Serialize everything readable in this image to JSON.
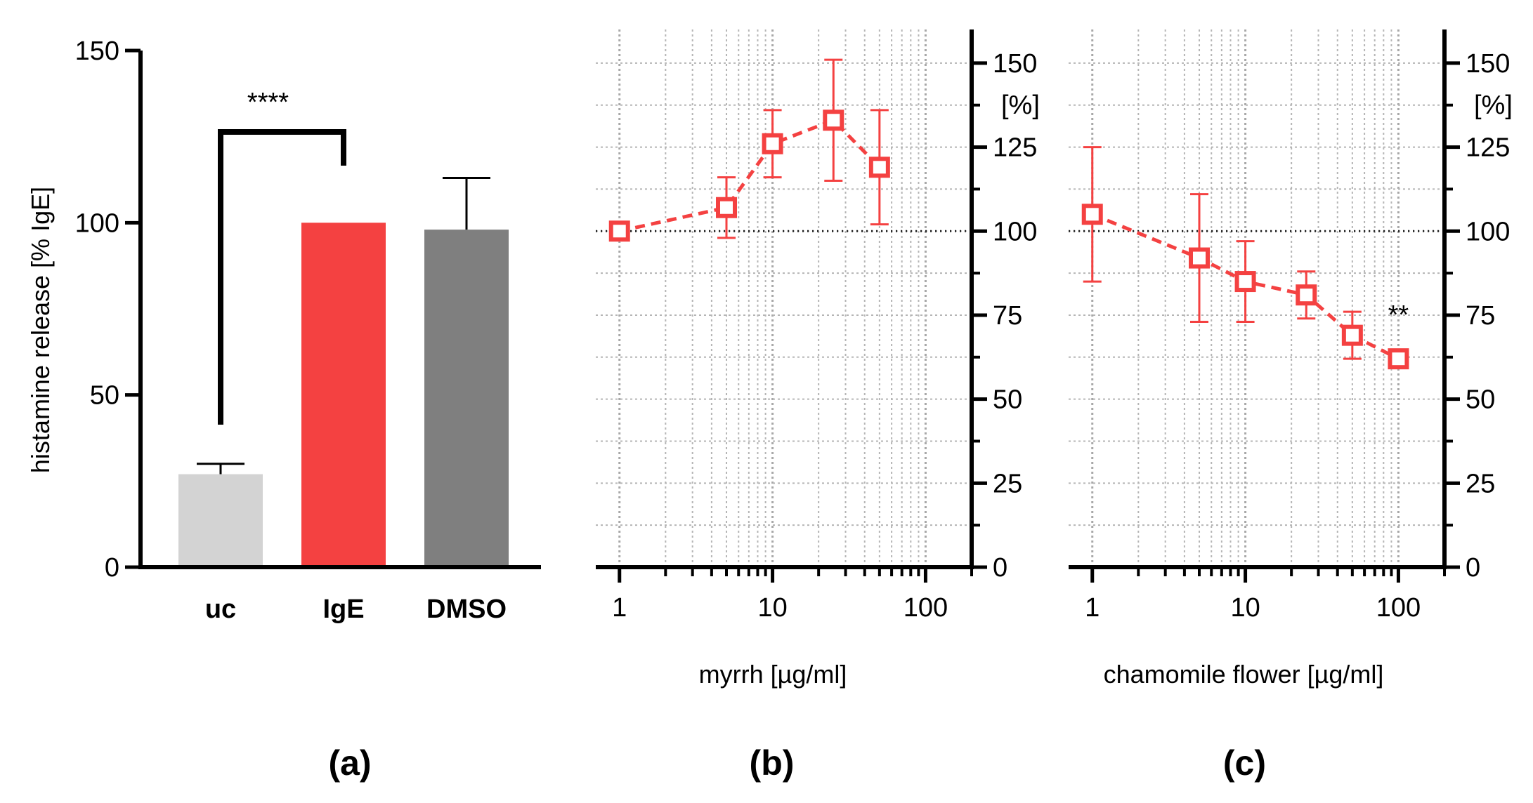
{
  "colors": {
    "uc": "#d3d3d3",
    "IgE": "#f44141",
    "DMSO": "#7f7f7f",
    "series": "#f44141",
    "grid": "#b5b5b5",
    "axis": "#000000"
  },
  "chart_data": [
    {
      "type": "bar",
      "panel_label": "(a)",
      "categories": [
        "uc",
        "IgE",
        "DMSO"
      ],
      "values": [
        27,
        100,
        98
      ],
      "errors": [
        3,
        0,
        15
      ],
      "ylabel": "histamine release [% IgE]",
      "ylim": [
        0,
        150
      ],
      "yticks": [
        0,
        50,
        100,
        150
      ],
      "ytick_labels": [
        "0",
        "50",
        "100",
        "150"
      ],
      "significance": {
        "label": "****",
        "from": "uc",
        "to": "IgE"
      }
    },
    {
      "type": "line",
      "panel_label": "(b)",
      "xlabel": "myrrh [µg/ml]",
      "xscale": "log",
      "xlim": [
        0.7,
        200
      ],
      "xticks": [
        1,
        10,
        100
      ],
      "xtick_labels": [
        "1",
        "10",
        "100"
      ],
      "ylim": [
        0,
        160
      ],
      "yticks": [
        0,
        25,
        50,
        75,
        100,
        125,
        150
      ],
      "ytick_labels": [
        "0",
        "25",
        "50",
        "75",
        "100",
        "125",
        "150"
      ],
      "yunit": "[%]",
      "reference_line": 100,
      "grid": true,
      "series": [
        {
          "name": "myrrh",
          "x": [
            1,
            5,
            10,
            25,
            50
          ],
          "y": [
            100,
            107,
            126,
            133,
            119
          ],
          "err": [
            2,
            9,
            10,
            18,
            17
          ]
        }
      ]
    },
    {
      "type": "line",
      "panel_label": "(c)",
      "xlabel": "chamomile flower [µg/ml]",
      "xscale": "log",
      "xlim": [
        0.7,
        200
      ],
      "xticks": [
        1,
        10,
        100
      ],
      "xtick_labels": [
        "1",
        "10",
        "100"
      ],
      "ylim": [
        0,
        160
      ],
      "yticks": [
        0,
        25,
        50,
        75,
        100,
        125,
        150
      ],
      "ytick_labels": [
        "0",
        "25",
        "50",
        "75",
        "100",
        "125",
        "150"
      ],
      "yunit": "[%]",
      "reference_line": 100,
      "grid": true,
      "series": [
        {
          "name": "chamomile flower",
          "x": [
            1,
            5,
            10,
            25,
            50,
            100
          ],
          "y": [
            105,
            92,
            85,
            81,
            69,
            62
          ],
          "err": [
            20,
            19,
            12,
            7,
            7,
            0
          ]
        }
      ],
      "significance": {
        "label": "**",
        "x": 100
      }
    }
  ]
}
